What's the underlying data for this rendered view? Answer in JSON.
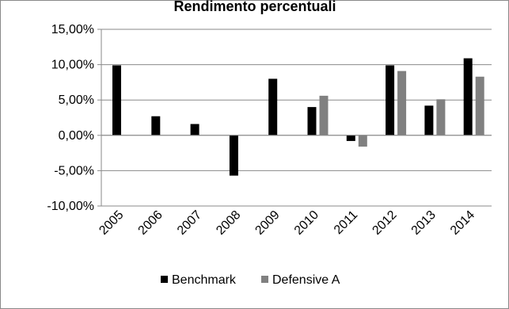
{
  "chart_data": {
    "type": "bar",
    "title": "Rendimento percentuali",
    "xlabel": "",
    "ylabel": "",
    "categories": [
      "2005",
      "2006",
      "2007",
      "2008",
      "2009",
      "2010",
      "2011",
      "2012",
      "2013",
      "2014"
    ],
    "series": [
      {
        "name": "Benchmark",
        "color": "#000000",
        "values": [
          9.9,
          2.7,
          1.6,
          -5.7,
          8.0,
          4.0,
          -0.8,
          9.9,
          4.2,
          10.9
        ]
      },
      {
        "name": "Defensive A",
        "color": "#808080",
        "values": [
          null,
          null,
          null,
          null,
          null,
          5.6,
          -1.6,
          9.1,
          5.1,
          8.3
        ]
      }
    ],
    "ylim": [
      -10,
      15
    ],
    "yticks": [
      "15,00%",
      "10,00%",
      "5,00%",
      "0,00%",
      "-5,00%",
      "-10,00%"
    ],
    "ytick_values": [
      15,
      10,
      5,
      0,
      -5,
      -10
    ],
    "grid": true,
    "legend_position": "bottom"
  }
}
